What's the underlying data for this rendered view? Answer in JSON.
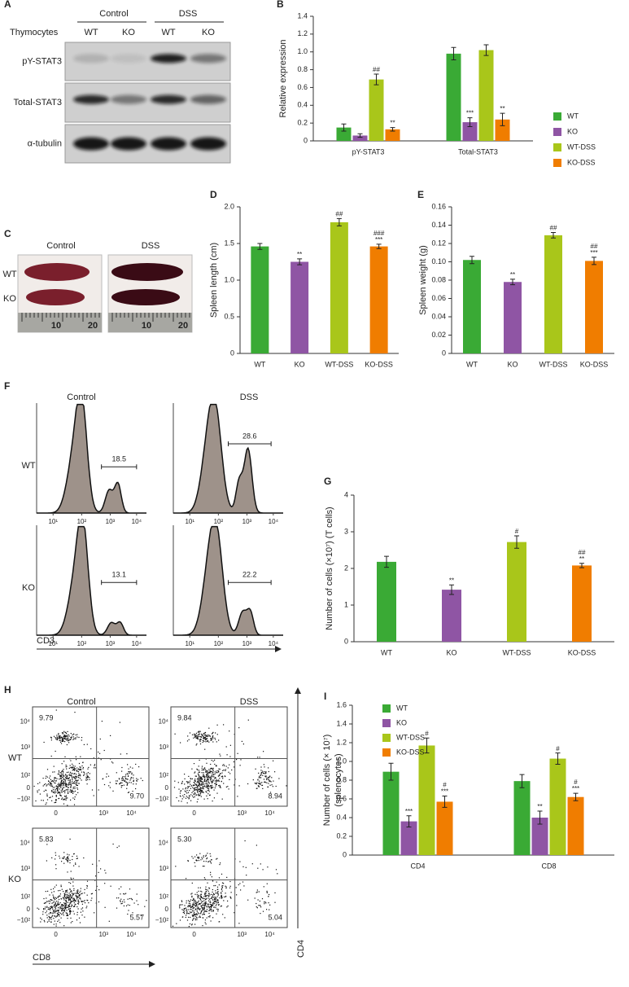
{
  "chart_data": [
    {
      "type": "bar",
      "y_label": "Relative expression",
      "categories": [
        "pY-STAT3",
        "Total-STAT3"
      ],
      "series": [
        {
          "name": "WT",
          "color": "#3aaa35",
          "values": [
            0.15,
            0.98
          ],
          "errors": [
            0.04,
            0.07
          ],
          "annotations": [
            null,
            null
          ]
        },
        {
          "name": "KO",
          "color": "#8f55a4",
          "values": [
            0.06,
            0.21
          ],
          "errors": [
            0.02,
            0.05
          ],
          "annotations": [
            null,
            "***"
          ]
        },
        {
          "name": "WT-DSS",
          "color": "#a9c61a",
          "values": [
            0.69,
            1.02
          ],
          "errors": [
            0.06,
            0.06
          ],
          "annotations": [
            "##",
            null
          ]
        },
        {
          "name": "KO-DSS",
          "color": "#f07d00",
          "values": [
            0.13,
            0.24
          ],
          "errors": [
            0.02,
            0.07
          ],
          "annotations": [
            "**",
            "**"
          ]
        }
      ],
      "ylim": [
        0,
        1.4
      ],
      "yticks": [
        0,
        0.2,
        0.4,
        0.6,
        0.8,
        {
          "value": 1,
          "label": "1.0"
        },
        1.2,
        1.4
      ],
      "legend": "right"
    },
    {
      "type": "bar",
      "y_label": "Spleen length (cm)",
      "categories": [
        "WT",
        "KO",
        "WT-DSS",
        "KO-DSS"
      ],
      "values": [
        1.46,
        1.25,
        1.79,
        1.46
      ],
      "errors": [
        0.04,
        0.04,
        0.05,
        0.03
      ],
      "colors": [
        "#3aaa35",
        "#8f55a4",
        "#a9c61a",
        "#f07d00"
      ],
      "annotations": [
        null,
        "**",
        "##",
        [
          "###",
          "***"
        ]
      ],
      "ylim": [
        0,
        2
      ],
      "yticks": [
        0,
        0.5,
        {
          "value": 1,
          "label": "1.0"
        },
        1.5,
        {
          "value": 2,
          "label": "2.0"
        }
      ]
    },
    {
      "type": "bar",
      "y_label": "Spleen weight (g)",
      "categories": [
        "WT",
        "KO",
        "WT-DSS",
        "KO-DSS"
      ],
      "values": [
        0.102,
        0.078,
        0.129,
        0.101
      ],
      "errors": [
        0.004,
        0.003,
        0.003,
        0.004
      ],
      "colors": [
        "#3aaa35",
        "#8f55a4",
        "#a9c61a",
        "#f07d00"
      ],
      "annotations": [
        null,
        "**",
        "##",
        [
          "##",
          "***"
        ]
      ],
      "ylim": [
        0,
        0.16
      ],
      "yticks": [
        0,
        0.02,
        0.04,
        0.06,
        0.08,
        {
          "value": 0.1,
          "label": "0.10"
        },
        0.12,
        0.14,
        0.16
      ]
    },
    {
      "type": "bar",
      "y_label": "Number of cells (×10⁷) (T cells)",
      "categories": [
        "WT",
        "KO",
        "WT-DSS",
        "KO-DSS"
      ],
      "values": [
        2.18,
        1.42,
        2.72,
        2.08
      ],
      "errors": [
        0.15,
        0.13,
        0.17,
        0.06
      ],
      "colors": [
        "#3aaa35",
        "#8f55a4",
        "#a9c61a",
        "#f07d00"
      ],
      "annotations": [
        null,
        "**",
        "#",
        [
          "##",
          "**"
        ]
      ],
      "ylim": [
        0,
        4
      ],
      "yticks": [
        0,
        1,
        2,
        3,
        4
      ]
    },
    {
      "type": "bar",
      "y_label": [
        "Number of cells (× 10⁷)",
        "(splenocytes)"
      ],
      "categories": [
        "CD4",
        "CD8"
      ],
      "series": [
        {
          "name": "WT",
          "color": "#3aaa35",
          "values": [
            0.89,
            0.79
          ],
          "errors": [
            0.09,
            0.07
          ],
          "annotations": [
            null,
            null
          ]
        },
        {
          "name": "KO",
          "color": "#8f55a4",
          "values": [
            0.36,
            0.4
          ],
          "errors": [
            0.06,
            0.07
          ],
          "annotations": [
            "***",
            "**"
          ]
        },
        {
          "name": "WT-DSS",
          "color": "#a9c61a",
          "values": [
            1.17,
            1.03
          ],
          "errors": [
            0.08,
            0.06
          ],
          "annotations": [
            "#",
            "#"
          ]
        },
        {
          "name": "KO-DSS",
          "color": "#f07d00",
          "values": [
            0.57,
            0.62
          ],
          "errors": [
            0.06,
            0.04
          ],
          "annotations": [
            [
              "#",
              "***"
            ],
            [
              "#",
              "***"
            ]
          ]
        }
      ],
      "ylim": [
        0,
        1.6
      ],
      "yticks": [
        0,
        0.2,
        0.4,
        0.6,
        0.8,
        {
          "value": 1,
          "label": "1.0"
        },
        1.2,
        1.4,
        1.6
      ],
      "legend": "upper left"
    }
  ],
  "figure": {
    "panel_labels": [
      "A",
      "B",
      "C",
      "D",
      "E",
      "F",
      "G",
      "H",
      "I"
    ],
    "blot": {
      "cell_type": "Thymocytes",
      "groups": [
        "Control",
        "DSS"
      ],
      "lanes": [
        "WT",
        "KO",
        "WT",
        "KO"
      ],
      "rows": [
        "pY-STAT3",
        "Total-STAT3",
        "α-tubulin"
      ]
    },
    "spleen": {
      "groups": [
        "Control",
        "DSS"
      ],
      "rows": [
        "WT",
        "KO"
      ],
      "ruler_labels": [
        "10",
        "20"
      ]
    },
    "histograms": {
      "groups": [
        "Control",
        "DSS"
      ],
      "rows": [
        "WT",
        "KO"
      ],
      "gates": [
        [
          "18.5",
          "28.6"
        ],
        [
          "13.1",
          "22.2"
        ]
      ],
      "x_ticks": [
        "10¹",
        "10²",
        "10³",
        "10⁴"
      ],
      "x_label": "CD3"
    },
    "flow": {
      "groups": [
        "Control",
        "DSS"
      ],
      "rows": [
        "WT",
        "KO"
      ],
      "quadrants": [
        [
          [
            "9.79",
            "9.70"
          ],
          [
            "9.84",
            "8.94"
          ]
        ],
        [
          [
            "5.83",
            "5.57"
          ],
          [
            "5.30",
            "5.04"
          ]
        ]
      ],
      "y_ticks": [
        "10⁴",
        "10³",
        "10²",
        "0",
        "−10²"
      ],
      "x_ticks": [
        "0",
        "10³",
        "10⁴"
      ],
      "x_label": "CD8",
      "y_label": "CD4"
    }
  }
}
